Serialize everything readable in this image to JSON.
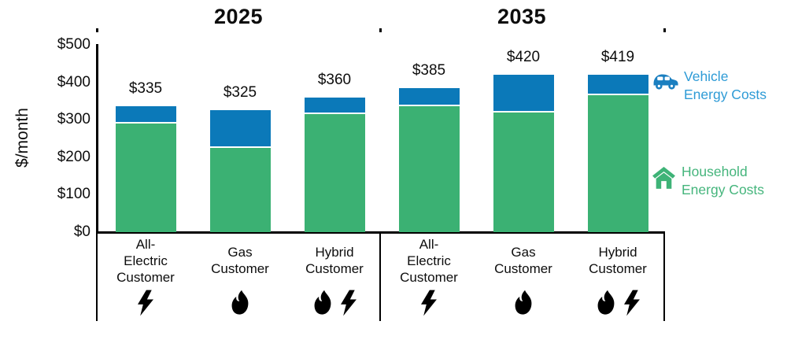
{
  "legend": {
    "vehicle": {
      "icon": "car-icon",
      "line1": "Vehicle",
      "line2": "Energy Costs",
      "text_color": "#2E9BD6"
    },
    "household": {
      "icon": "house-icon",
      "line1": "Household",
      "line2": "Energy Costs",
      "text_color": "#45B57C"
    }
  },
  "colors": {
    "household_bar": "#3BB173",
    "vehicle_bar": "#0B79B9",
    "axis": "#000000"
  },
  "chart_data": {
    "type": "bar",
    "stacked": true,
    "title_left": "2025",
    "title_right": "2035",
    "ylabel": "$/month",
    "ylim": [
      0,
      500
    ],
    "ytick_step": 100,
    "ytick_labels": [
      "$0",
      "$100",
      "$200",
      "$300",
      "$400",
      "$500"
    ],
    "legend_position": "right",
    "series_names": [
      "Household Energy Costs",
      "Vehicle Energy Costs"
    ],
    "groups": [
      {
        "year": "2025",
        "bars": [
          {
            "category_lines": [
              "All-",
              "Electric",
              "Customer"
            ],
            "icons": [
              "bolt-icon"
            ],
            "household": 290,
            "vehicle": 45,
            "total": 335,
            "total_label": "$335"
          },
          {
            "category_lines": [
              "Gas",
              "Customer"
            ],
            "icons": [
              "flame-icon"
            ],
            "household": 225,
            "vehicle": 100,
            "total": 325,
            "total_label": "$325"
          },
          {
            "category_lines": [
              "Hybrid",
              "Customer"
            ],
            "icons": [
              "flame-icon",
              "bolt-icon"
            ],
            "household": 315,
            "vehicle": 45,
            "total": 360,
            "total_label": "$360"
          }
        ]
      },
      {
        "year": "2035",
        "bars": [
          {
            "category_lines": [
              "All-",
              "Electric",
              "Customer"
            ],
            "icons": [
              "bolt-icon"
            ],
            "household": 335,
            "vehicle": 50,
            "total": 385,
            "total_label": "$385"
          },
          {
            "category_lines": [
              "Gas",
              "Customer"
            ],
            "icons": [
              "flame-icon"
            ],
            "household": 320,
            "vehicle": 100,
            "total": 420,
            "total_label": "$420"
          },
          {
            "category_lines": [
              "Hybrid",
              "Customer"
            ],
            "icons": [
              "flame-icon",
              "bolt-icon"
            ],
            "household": 365,
            "vehicle": 54,
            "total": 419,
            "total_label": "$419"
          }
        ]
      }
    ]
  }
}
